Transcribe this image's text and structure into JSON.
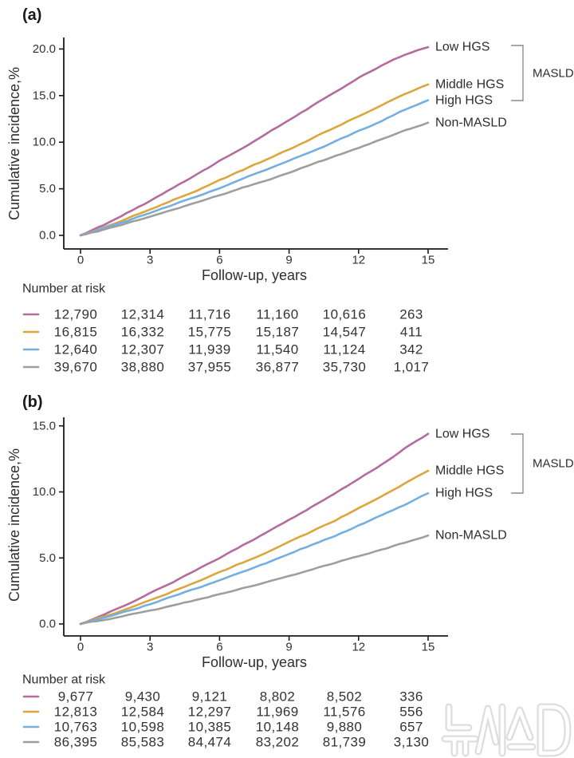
{
  "figure": {
    "watermark": "뉴시스"
  },
  "chart_data": [
    {
      "type": "line",
      "panel_label": "(a)",
      "xlabel": "Follow-up, years",
      "ylabel": "Cumulative incidence,%",
      "xlim": [
        0,
        15
      ],
      "ylim": [
        0,
        20
      ],
      "x_ticks": [
        "0",
        "3",
        "6",
        "9",
        "12",
        "15"
      ],
      "y_ticks": [
        "0.0",
        "5.0",
        "10.0",
        "15.0",
        "20.0"
      ],
      "x_years": [
        0,
        1,
        2,
        3,
        4,
        5,
        6,
        7,
        8,
        9,
        10,
        11,
        12,
        13,
        14,
        15
      ],
      "risk_table_header": "Number at risk",
      "bracket_label": "MASLD",
      "series": [
        {
          "name": "Low HGS",
          "color": "#b66b9f",
          "values": [
            0,
            1.1,
            2.4,
            3.7,
            5.1,
            6.5,
            8.0,
            9.4,
            10.9,
            12.4,
            13.9,
            15.4,
            16.9,
            18.2,
            19.4,
            20.2
          ],
          "number_at_risk": [
            "12,790",
            "12,314",
            "11,716",
            "11,160",
            "10,616",
            "263"
          ]
        },
        {
          "name": "Middle HGS",
          "color": "#dda63d",
          "values": [
            0,
            0.85,
            1.8,
            2.8,
            3.8,
            4.8,
            5.9,
            7.0,
            8.1,
            9.2,
            10.4,
            11.6,
            12.8,
            14.0,
            15.2,
            16.2
          ],
          "number_at_risk": [
            "16,815",
            "16,332",
            "15,775",
            "15,187",
            "14,547",
            "411"
          ]
        },
        {
          "name": "High HGS",
          "color": "#74afe0",
          "values": [
            0,
            0.75,
            1.55,
            2.4,
            3.3,
            4.2,
            5.1,
            6.1,
            7.0,
            8.0,
            9.0,
            10.1,
            11.2,
            12.3,
            13.5,
            14.5
          ],
          "number_at_risk": [
            "12,640",
            "12,307",
            "11,939",
            "11,540",
            "11,124",
            "342"
          ]
        },
        {
          "name": "Non-MASLD",
          "color": "#9e9e9e",
          "values": [
            0,
            0.6,
            1.3,
            2.0,
            2.75,
            3.5,
            4.3,
            5.1,
            5.9,
            6.75,
            7.6,
            8.5,
            9.4,
            10.3,
            11.25,
            12.1
          ],
          "number_at_risk": [
            "39,670",
            "38,880",
            "37,955",
            "36,877",
            "35,730",
            "1,017"
          ]
        }
      ]
    },
    {
      "type": "line",
      "panel_label": "(b)",
      "xlabel": "Follow-up, years",
      "ylabel": "Cumulative incidence,%",
      "xlim": [
        0,
        15
      ],
      "ylim": [
        0,
        15
      ],
      "x_ticks": [
        "0",
        "3",
        "6",
        "9",
        "12",
        "15"
      ],
      "y_ticks": [
        "0.0",
        "5.0",
        "10.0",
        "15.0"
      ],
      "x_years": [
        0,
        1,
        2,
        3,
        4,
        5,
        6,
        7,
        8,
        9,
        10,
        11,
        12,
        13,
        14,
        15
      ],
      "risk_table_header": "Number at risk",
      "bracket_label": "MASLD",
      "series": [
        {
          "name": "Low HGS",
          "color": "#b66b9f",
          "values": [
            0,
            0.7,
            1.5,
            2.35,
            3.2,
            4.1,
            5.0,
            5.95,
            6.9,
            7.9,
            8.9,
            9.95,
            11.0,
            12.1,
            13.3,
            14.4
          ],
          "number_at_risk": [
            "9,677",
            "9,430",
            "9,121",
            "8,802",
            "8,502",
            "336"
          ]
        },
        {
          "name": "Middle HGS",
          "color": "#dda63d",
          "values": [
            0,
            0.55,
            1.15,
            1.8,
            2.5,
            3.2,
            3.9,
            4.65,
            5.4,
            6.2,
            7.0,
            7.85,
            8.75,
            9.7,
            10.65,
            11.6
          ],
          "number_at_risk": [
            "12,813",
            "12,584",
            "12,297",
            "11,969",
            "11,576",
            "556"
          ]
        },
        {
          "name": "High HGS",
          "color": "#74afe0",
          "values": [
            0,
            0.45,
            0.95,
            1.5,
            2.1,
            2.7,
            3.3,
            3.95,
            4.6,
            5.3,
            6.0,
            6.7,
            7.45,
            8.25,
            9.05,
            9.9
          ],
          "number_at_risk": [
            "10,763",
            "10,598",
            "10,385",
            "10,148",
            "9,880",
            "657"
          ]
        },
        {
          "name": "Non-MASLD",
          "color": "#9e9e9e",
          "values": [
            0,
            0.3,
            0.65,
            1.0,
            1.4,
            1.8,
            2.25,
            2.7,
            3.15,
            3.65,
            4.15,
            4.65,
            5.15,
            5.65,
            6.15,
            6.7
          ],
          "number_at_risk": [
            "86,395",
            "85,583",
            "84,474",
            "83,202",
            "81,739",
            "3,130"
          ]
        }
      ]
    }
  ]
}
